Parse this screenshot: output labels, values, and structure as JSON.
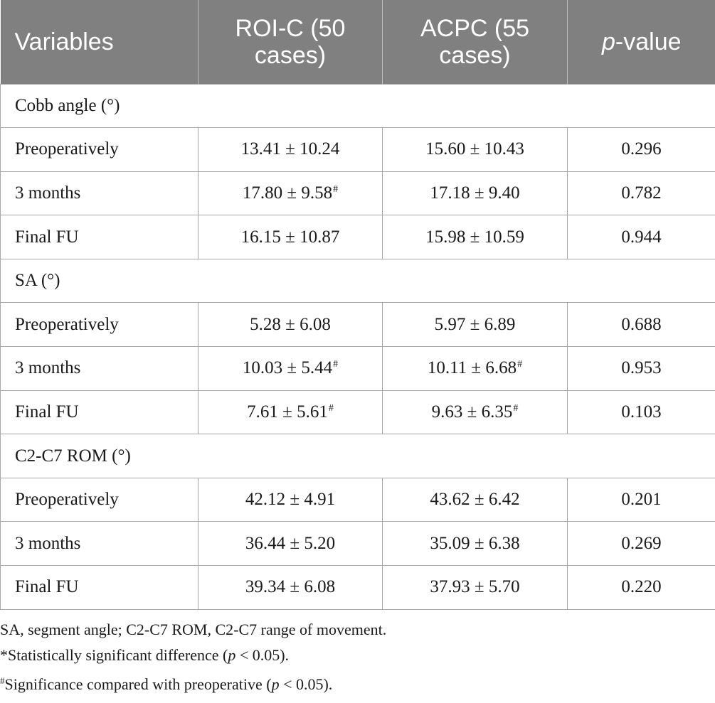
{
  "header": {
    "col1": "Variables",
    "col2": "ROI-C (50 cases)",
    "col3": "ACPC (55 cases)",
    "col4_italic": "p",
    "col4_rest": "-value"
  },
  "sections": [
    {
      "title": "Cobb angle (°)",
      "rows": [
        {
          "label": "Preoperatively",
          "roi": "13.41 ± 10.24",
          "roi_mark": "",
          "acpc": "15.60 ± 10.43",
          "acpc_mark": "",
          "p": "0.296"
        },
        {
          "label": "3 months",
          "roi": "17.80 ± 9.58",
          "roi_mark": "#",
          "acpc": "17.18 ± 9.40",
          "acpc_mark": "",
          "p": "0.782"
        },
        {
          "label": "Final FU",
          "roi": "16.15 ± 10.87",
          "roi_mark": "",
          "acpc": "15.98 ± 10.59",
          "acpc_mark": "",
          "p": "0.944"
        }
      ]
    },
    {
      "title": "SA (°)",
      "rows": [
        {
          "label": "Preoperatively",
          "roi": "5.28 ± 6.08",
          "roi_mark": "",
          "acpc": "5.97 ± 6.89",
          "acpc_mark": "",
          "p": "0.688"
        },
        {
          "label": "3 months",
          "roi": "10.03 ± 5.44",
          "roi_mark": "#",
          "acpc": "10.11 ± 6.68",
          "acpc_mark": "#",
          "p": "0.953"
        },
        {
          "label": "Final FU",
          "roi": "7.61 ± 5.61",
          "roi_mark": "#",
          "acpc": "9.63 ± 6.35",
          "acpc_mark": "#",
          "p": "0.103"
        }
      ]
    },
    {
      "title": "C2-C7 ROM (°)",
      "rows": [
        {
          "label": "Preoperatively",
          "roi": "42.12 ± 4.91",
          "roi_mark": "",
          "acpc": "43.62 ± 6.42",
          "acpc_mark": "",
          "p": "0.201"
        },
        {
          "label": "3 months",
          "roi": "36.44 ± 5.20",
          "roi_mark": "",
          "acpc": "35.09 ± 6.38",
          "acpc_mark": "",
          "p": "0.269"
        },
        {
          "label": "Final FU",
          "roi": "39.34 ± 6.08",
          "roi_mark": "",
          "acpc": "37.93 ± 5.70",
          "acpc_mark": "",
          "p": "0.220"
        }
      ]
    }
  ],
  "notes": {
    "abbrev": "SA, segment angle; C2-C7 ROM, C2-C7 range of movement.",
    "star_text_a": "*Statistically significant difference (",
    "star_p": "p",
    "star_text_b": " < 0.05).",
    "hash_mark": "#",
    "hash_text_a": "Significance compared with preoperative (",
    "hash_p": "p",
    "hash_text_b": " < 0.05)."
  }
}
